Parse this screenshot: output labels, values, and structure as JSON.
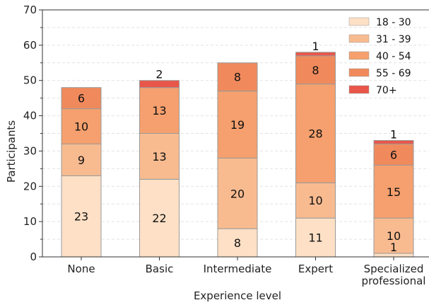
{
  "chart_data": {
    "type": "bar",
    "stacked": true,
    "title": "",
    "xlabel": "Experience level",
    "ylabel": "Participants",
    "ylim": [
      0,
      70
    ],
    "yticks": [
      0,
      10,
      20,
      30,
      40,
      50,
      60,
      70
    ],
    "grid": true,
    "legend_position": "top-right",
    "categories": [
      [
        "None"
      ],
      [
        "Basic"
      ],
      [
        "Intermediate"
      ],
      [
        "Expert"
      ],
      [
        "Specialized",
        "professional"
      ]
    ],
    "series": [
      {
        "name": "18 - 30",
        "color": "#fde0c5",
        "values": [
          23,
          22,
          8,
          11,
          1
        ]
      },
      {
        "name": "31 - 39",
        "color": "#f8bb90",
        "values": [
          9,
          13,
          20,
          10,
          10
        ]
      },
      {
        "name": "40 - 54",
        "color": "#f5a06e",
        "values": [
          10,
          13,
          19,
          28,
          15
        ]
      },
      {
        "name": "55 - 69",
        "color": "#f08a5c",
        "values": [
          6,
          0,
          8,
          8,
          6
        ]
      },
      {
        "name": "70+",
        "color": "#e8574a",
        "values": [
          0,
          2,
          0,
          1,
          1
        ]
      }
    ]
  }
}
